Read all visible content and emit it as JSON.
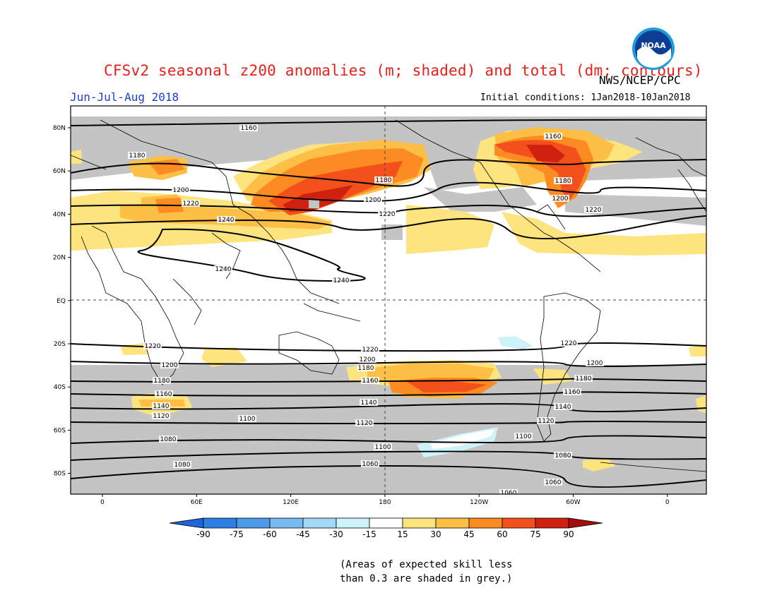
{
  "header": {
    "title": "CFSv2 seasonal z200 anomalies (m; shaded) and total (dm; contours)",
    "period": "Jun-Jul-Aug 2018",
    "agency": "NWS/NCEP/CPC",
    "initial_conditions": "Initial conditions: 1Jan2018-10Jan2018",
    "logo_text": "NOAA"
  },
  "map": {
    "lat_labels": [
      "80N",
      "60N",
      "40N",
      "20N",
      "EQ",
      "20S",
      "40S",
      "60S",
      "80S"
    ],
    "lon_labels": [
      "0",
      "60E",
      "120E",
      "180",
      "120W",
      "60W",
      "0"
    ],
    "contour_labels": [
      "1160",
      "1180",
      "1200",
      "1220",
      "1240",
      "1240",
      "1240",
      "1180",
      "1200",
      "1220",
      "1160",
      "1180",
      "1200",
      "1220",
      "1220",
      "1200",
      "1180",
      "1160",
      "1140",
      "1120",
      "1220",
      "1200",
      "1180",
      "1160",
      "1140",
      "1120",
      "1220",
      "1200",
      "1180",
      "1160",
      "1140",
      "1120",
      "1100",
      "1100",
      "1100",
      "1080",
      "1080",
      "1080",
      "1060",
      "1060",
      "1060"
    ],
    "colors": {
      "grey": "#c4c4c4",
      "c15_30": "#fde47e",
      "c30_45": "#fdbf45",
      "c45_60": "#fc8c21",
      "c60_75": "#f4501b",
      "c75_90": "#d0200f",
      "neg15": "#cdf2f7"
    }
  },
  "colorbar": {
    "ticks": [
      "-90",
      "-75",
      "-60",
      "-45",
      "-30",
      "-15",
      "15",
      "30",
      "45",
      "60",
      "75",
      "90"
    ],
    "colors": [
      "#1d66d8",
      "#2f7ee3",
      "#4d9be9",
      "#79b9f1",
      "#a3d7f6",
      "#cdf2f7",
      "#ffffff",
      "#fde47e",
      "#fdbf45",
      "#fc8c21",
      "#f4501b",
      "#d0200f",
      "#a50d0d"
    ]
  },
  "footnote": {
    "line1": "(Areas of expected skill less",
    "line2": "than 0.3 are shaded in grey.)"
  }
}
